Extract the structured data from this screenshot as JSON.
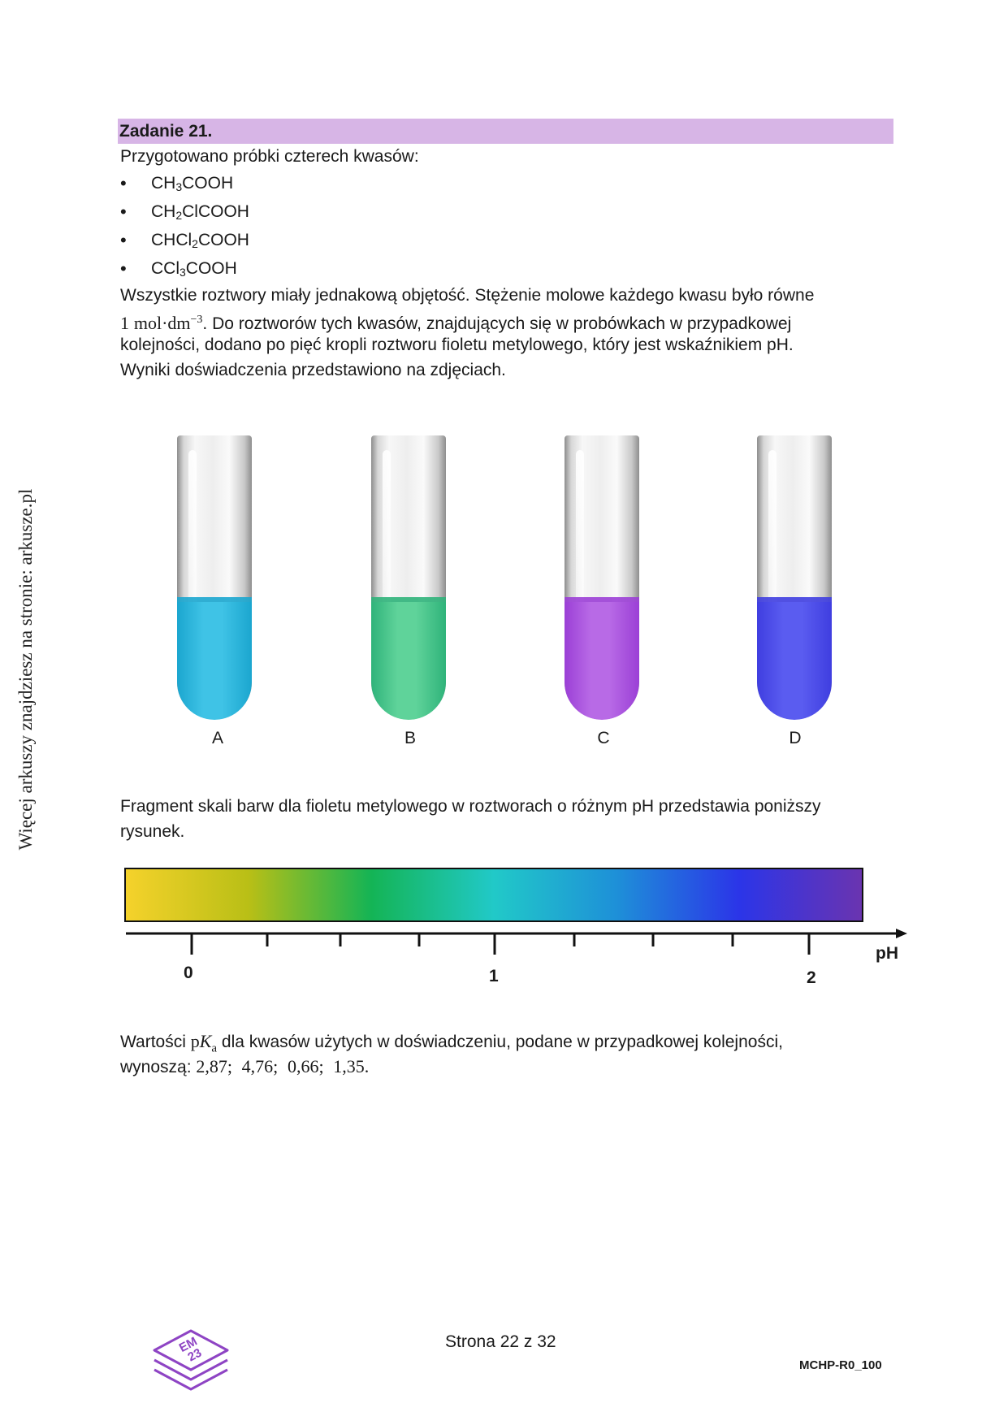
{
  "side_text": "Więcej arkuszy znajdziesz na stronie: arkusze.pl",
  "task": {
    "header": "Zadanie 21.",
    "intro": "Przygotowano próbki czterech kwasów:",
    "acids": [
      {
        "p1": "CH",
        "s1": "3",
        "p2": "COOH",
        "s2": "",
        "p3": ""
      },
      {
        "p1": "CH",
        "s1": "2",
        "p2": "ClCOOH",
        "s2": "",
        "p3": ""
      },
      {
        "p1": "CHCl",
        "s1": "2",
        "p2": "COOH",
        "s2": "",
        "p3": ""
      },
      {
        "p1": "CCl",
        "s1": "3",
        "p2": "COOH",
        "s2": "",
        "p3": ""
      }
    ],
    "paragraph": {
      "line1": "Wszystkie roztwory miały jednakową objętość. Stężenie molowe każdego kwasu było równe",
      "conc_number": "1",
      "conc_unit": "mol·dm",
      "conc_exp": "−3",
      "line2_rest": ". Do roztworów tych kwasów, znajdujących się w probówkach w przypadkowej",
      "line3": "kolejności, dodano po pięć kropli roztworu fioletu metylowego, który jest wskaźnikiem pH.",
      "line4": "Wyniki doświadczenia przedstawiono na zdjęciach."
    }
  },
  "tubes": [
    {
      "label": "A",
      "color": "#1ba6cf",
      "light": "#3fc3e6"
    },
    {
      "label": "B",
      "color": "#2fb37a",
      "light": "#5fd39a"
    },
    {
      "label": "C",
      "color": "#9b3fd6",
      "light": "#b86ae6"
    },
    {
      "label": "D",
      "color": "#3f3ee0",
      "light": "#5a5cf0"
    }
  ],
  "scale": {
    "intro_line1": "Fragment skali barw dla fioletu metylowego w roztworach o różnym pH przedstawia poniższy",
    "intro_line2": "rysunek.",
    "colors": [
      "#f5d22b",
      "#b9bf16",
      "#14b455",
      "#21c9c8",
      "#1e90d8",
      "#2b35e8",
      "#6a34b0"
    ],
    "axis_label": "pH",
    "major_ticks": [
      "0",
      "1",
      "2"
    ]
  },
  "pka": {
    "intro": "Wartości ",
    "p": "p",
    "K": "K",
    "a": "a",
    "after": " dla kwasów użytych w doświadczeniu, podane w przypadkowej kolejności,",
    "line2_intro": "wynoszą: ",
    "values": [
      "2,87",
      "4,76",
      "0,66",
      "1,35"
    ],
    "separator": ";",
    "end": "."
  },
  "footer": {
    "page": "Strona 22 z 32",
    "code": "MCHP-R0_100",
    "logo_text_top": "EM",
    "logo_text_bottom": "23"
  }
}
